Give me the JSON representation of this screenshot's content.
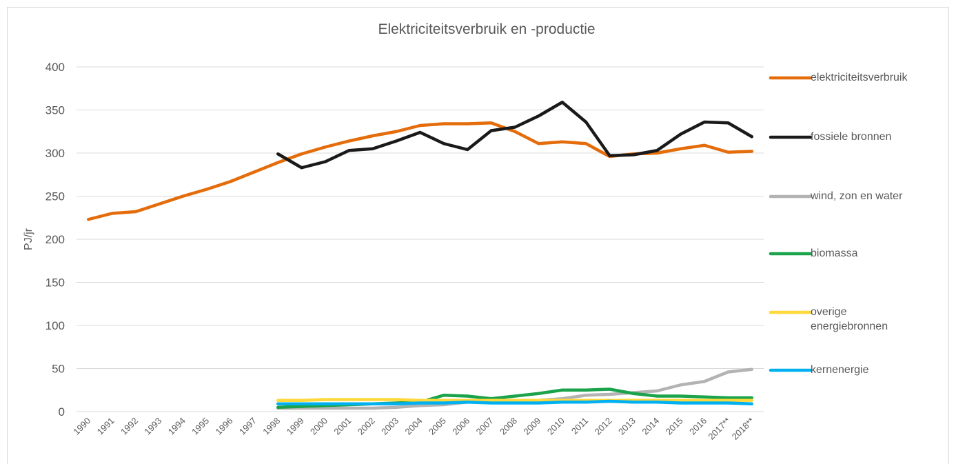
{
  "chart_data": {
    "type": "line",
    "title": "Elektriciteitsverbruik en -productie",
    "y_label": "PJ/jr",
    "categories": [
      "1990",
      "1991",
      "1992",
      "1993",
      "1994",
      "1995",
      "1996",
      "1997",
      "1998",
      "1999",
      "2000",
      "2001",
      "2002",
      "2003",
      "2004",
      "2005",
      "2006",
      "2007",
      "2008",
      "2009",
      "2010",
      "2011",
      "2012",
      "2013",
      "2014",
      "2015",
      "2016",
      "2017**",
      "2018**"
    ],
    "series": [
      {
        "name": "elektriciteitsverbruik",
        "color": "#e46c0a",
        "values": [
          223,
          230,
          232,
          241,
          250,
          258,
          267,
          278,
          289,
          299,
          307,
          314,
          320,
          325,
          332,
          334,
          334,
          335,
          325,
          311,
          313,
          311,
          296,
          299,
          300,
          305,
          309,
          301,
          302
        ]
      },
      {
        "name": "fossiele bronnen",
        "color": "#1a1a1a",
        "values": [
          null,
          null,
          null,
          null,
          null,
          null,
          null,
          null,
          299,
          283,
          290,
          303,
          305,
          314,
          324,
          311,
          304,
          326,
          330,
          343,
          359,
          336,
          297,
          298,
          303,
          322,
          336,
          335,
          319
        ]
      },
      {
        "name": "wind, zon en water",
        "color": "#b3b3b3",
        "values": [
          null,
          null,
          null,
          null,
          null,
          null,
          null,
          null,
          4,
          4,
          4,
          4,
          4,
          5,
          7,
          8,
          11,
          13,
          13,
          13,
          15,
          19,
          20,
          22,
          24,
          31,
          35,
          46,
          49
        ]
      },
      {
        "name": "biomassa",
        "color": "#1aa34a",
        "values": [
          null,
          null,
          null,
          null,
          null,
          null,
          null,
          null,
          5,
          6,
          7,
          8,
          9,
          10,
          11,
          19,
          18,
          15,
          18,
          21,
          25,
          25,
          26,
          21,
          18,
          18,
          17,
          16,
          16
        ]
      },
      {
        "name": "overige energiebronnen",
        "color": "#ffd83b",
        "values": [
          null,
          null,
          null,
          null,
          null,
          null,
          null,
          null,
          13,
          13,
          14,
          14,
          14,
          14,
          13,
          13,
          13,
          13,
          13,
          13,
          13,
          13,
          13,
          13,
          13,
          13,
          13,
          13,
          13
        ]
      },
      {
        "name": "kernenergie",
        "color": "#00b0f0",
        "values": [
          null,
          null,
          null,
          null,
          null,
          null,
          null,
          null,
          9,
          9,
          9,
          9,
          9,
          9,
          10,
          10,
          11,
          10,
          10,
          10,
          11,
          11,
          12,
          11,
          11,
          10,
          10,
          10,
          9
        ]
      }
    ],
    "ylim": [
      0,
      400
    ],
    "yticks": [
      0,
      50,
      100,
      150,
      200,
      250,
      300,
      350,
      400
    ],
    "grid": true,
    "legend": "right"
  }
}
